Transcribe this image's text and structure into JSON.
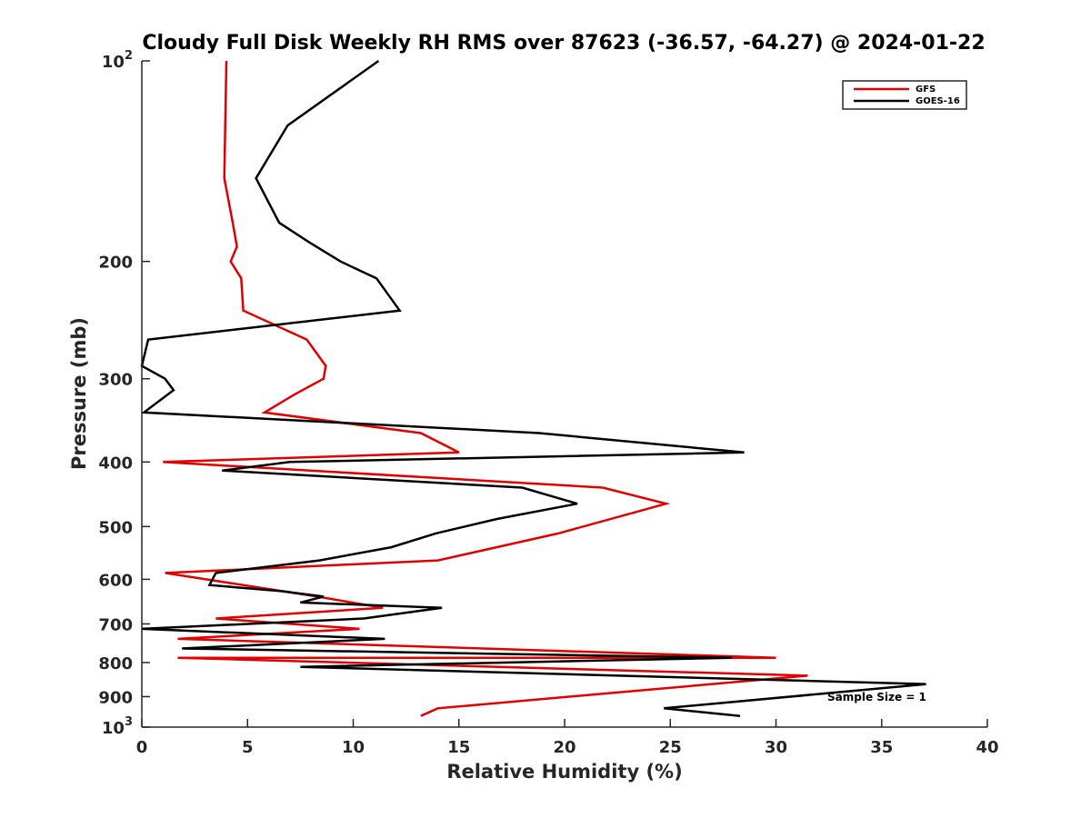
{
  "chart_data": {
    "type": "line",
    "title": "Cloudy Full Disk Weekly RH RMS over 87623 (-36.57, -64.27) @ 2024-01-22",
    "xlabel": "Relative Humidity (%)",
    "ylabel": "Pressure (mb)",
    "xlim": [
      0,
      40
    ],
    "ylim": [
      100,
      1000
    ],
    "y_scale": "log",
    "y_reversed": true,
    "x_ticks": [
      0,
      5,
      10,
      15,
      20,
      25,
      30,
      35,
      40
    ],
    "x_tick_labels": [
      "0",
      "5",
      "10",
      "15",
      "20",
      "25",
      "30",
      "35",
      "40"
    ],
    "y_ticks": [
      100,
      200,
      300,
      400,
      500,
      600,
      700,
      800,
      900,
      1000
    ],
    "y_tick_labels": [
      {
        "base": "10",
        "exp": "2"
      },
      {
        "base": "200",
        "exp": ""
      },
      {
        "base": "300",
        "exp": ""
      },
      {
        "base": "400",
        "exp": ""
      },
      {
        "base": "500",
        "exp": ""
      },
      {
        "base": "600",
        "exp": ""
      },
      {
        "base": "700",
        "exp": ""
      },
      {
        "base": "800",
        "exp": ""
      },
      {
        "base": "900",
        "exp": ""
      },
      {
        "base": "10",
        "exp": "3"
      }
    ],
    "legend_position": "top-right",
    "annotation": "Sample Size = 1",
    "series": [
      {
        "name": "GFS",
        "color": "#e00000",
        "points": [
          [
            4.0,
            100
          ],
          [
            3.9,
            150
          ],
          [
            4.3,
            175
          ],
          [
            4.5,
            190
          ],
          [
            4.2,
            200
          ],
          [
            4.7,
            212
          ],
          [
            4.8,
            237
          ],
          [
            7.8,
            262
          ],
          [
            8.7,
            287
          ],
          [
            8.6,
            300
          ],
          [
            7.2,
            317
          ],
          [
            5.8,
            337
          ],
          [
            13.2,
            362
          ],
          [
            15.0,
            387
          ],
          [
            1.0,
            400
          ],
          [
            21.8,
            437
          ],
          [
            24.8,
            462
          ],
          [
            19.7,
            512
          ],
          [
            14.0,
            562
          ],
          [
            1.1,
            587
          ],
          [
            8.3,
            637
          ],
          [
            11.4,
            662
          ],
          [
            3.5,
            687
          ],
          [
            10.3,
            712
          ],
          [
            1.7,
            737
          ],
          [
            30.0,
            787
          ],
          [
            1.7,
            787
          ],
          [
            31.5,
            837
          ],
          [
            14.0,
            937
          ],
          [
            13.2,
            962
          ]
        ]
      },
      {
        "name": "GOES-16",
        "color": "#000000",
        "points": [
          [
            11.2,
            100
          ],
          [
            6.9,
            125
          ],
          [
            5.4,
            150
          ],
          [
            6.5,
            175
          ],
          [
            7.9,
            187
          ],
          [
            9.4,
            200
          ],
          [
            11.1,
            212
          ],
          [
            12.2,
            237
          ],
          [
            0.3,
            262
          ],
          [
            0.0,
            287
          ],
          [
            1.1,
            300
          ],
          [
            1.5,
            312
          ],
          [
            0.1,
            337
          ],
          [
            18.8,
            362
          ],
          [
            28.5,
            387
          ],
          [
            7.0,
            400
          ],
          [
            3.8,
            412
          ],
          [
            18.0,
            437
          ],
          [
            20.6,
            462
          ],
          [
            16.8,
            487
          ],
          [
            13.9,
            512
          ],
          [
            11.8,
            537
          ],
          [
            8.4,
            562
          ],
          [
            3.5,
            587
          ],
          [
            3.2,
            612
          ],
          [
            6.6,
            625
          ],
          [
            8.6,
            637
          ],
          [
            7.5,
            650
          ],
          [
            14.2,
            662
          ],
          [
            10.5,
            687
          ],
          [
            0.0,
            712
          ],
          [
            11.5,
            737
          ],
          [
            1.9,
            762
          ],
          [
            27.9,
            787
          ],
          [
            7.5,
            812
          ],
          [
            37.1,
            862
          ],
          [
            24.7,
            937
          ],
          [
            28.3,
            962
          ]
        ]
      }
    ]
  }
}
